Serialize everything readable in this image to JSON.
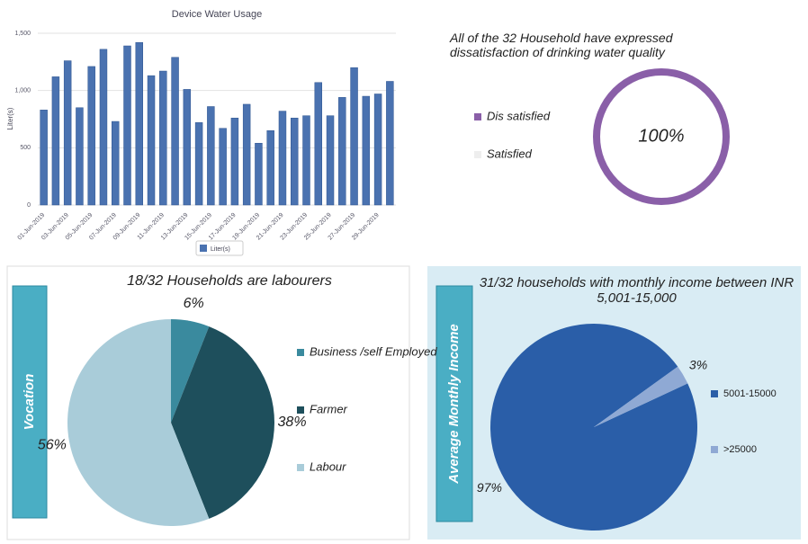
{
  "chart_data": [
    {
      "type": "bar",
      "title": "Device Water Usage",
      "y_label": "Liter(s)",
      "categories": [
        "01-Jun-2019",
        null,
        "03-Jun-2019",
        null,
        "05-Jun-2019",
        null,
        "07-Jun-2019",
        null,
        "09-Jun-2019",
        null,
        "11-Jun-2019",
        null,
        "13-Jun-2019",
        null,
        "15-Jun-2019",
        null,
        "17-Jun-2019",
        null,
        "19-Jun-2019",
        null,
        "21-Jun-2019",
        null,
        "23-Jun-2019",
        null,
        "25-Jun-2019",
        null,
        "27-Jun-2019",
        null,
        "29-Jun-2019",
        null
      ],
      "series": [
        {
          "name": "Liter(s)",
          "color": "#4a72b0",
          "values": [
            830,
            1120,
            1260,
            850,
            1210,
            1360,
            730,
            1390,
            1420,
            1130,
            1170,
            1290,
            1010,
            720,
            860,
            670,
            760,
            880,
            540,
            650,
            820,
            760,
            780,
            1070,
            780,
            940,
            1200,
            950,
            970,
            1080
          ]
        }
      ],
      "ylim": [
        0,
        1500
      ],
      "yticks": [
        0,
        500,
        {
          "value": 1000,
          "label": "1,000"
        },
        {
          "value": 1500,
          "label": "1,500"
        }
      ],
      "grid": true
    },
    {
      "type": "donut",
      "title": "All of the 32  Household have expressed dissatisfaction of drinking water quality",
      "categories": [
        "Dis satisfied",
        "Satisfied"
      ],
      "values": [
        100,
        0
      ],
      "value_labels": [
        "100%",
        null
      ],
      "colors": [
        "#8a5fa8",
        "#eeeeee"
      ]
    },
    {
      "type": "pie",
      "title": "18/32 Households are labourers",
      "side_label": "Vocation",
      "categories": [
        "Business /self Employed",
        "Farmer",
        "Labour"
      ],
      "values": [
        6,
        38,
        56
      ],
      "value_labels": [
        "6%",
        "38%",
        "56%"
      ],
      "colors": [
        "#3a8a9e",
        "#1e4f5c",
        "#a9ccd9"
      ]
    },
    {
      "type": "pie",
      "title": "31/32 households with monthly income between INR 5,001-15,000",
      "side_label": "Average Monthly Income",
      "categories": [
        "5001-15000",
        ">25000"
      ],
      "values": [
        97,
        3
      ],
      "value_labels": [
        "97%",
        "3%"
      ],
      "colors": [
        "#2a5ea8",
        "#8fa9d4"
      ]
    }
  ]
}
